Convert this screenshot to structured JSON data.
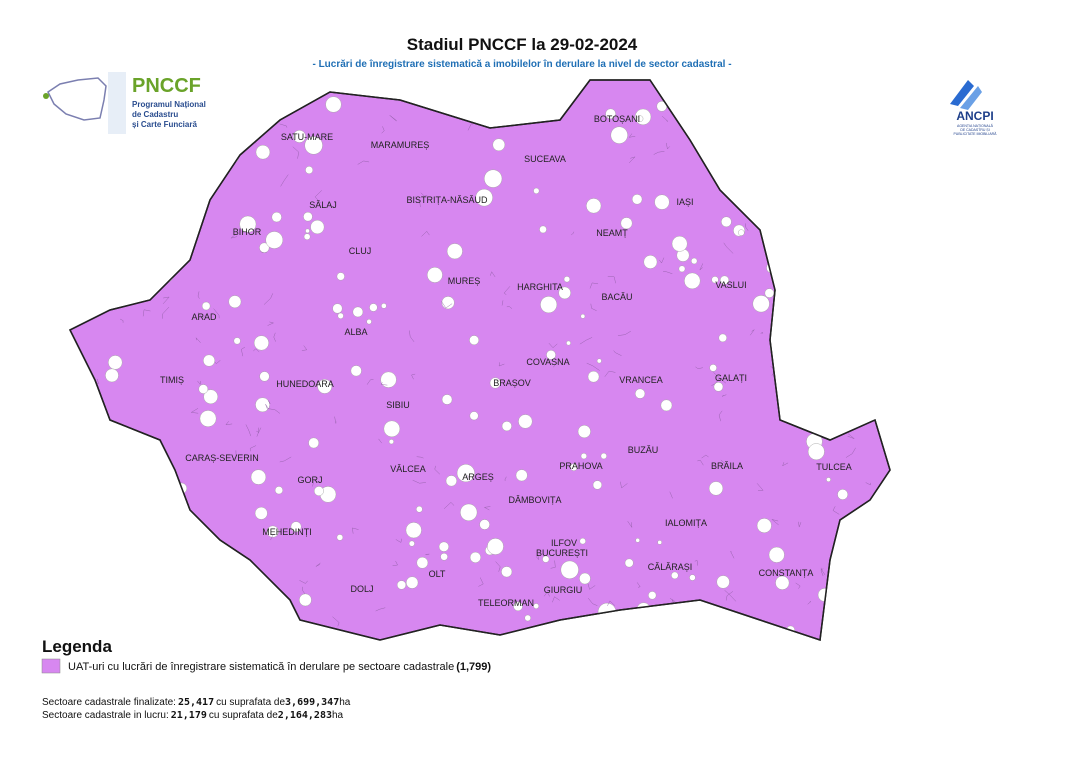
{
  "header": {
    "title": "Stadiul PNCCF la 29-02-2024",
    "subtitle": "- Lucrări de înregistrare sistematică a imobilelor în derulare la nivel de sector cadastral -"
  },
  "logo_left": {
    "name": "PNCCF",
    "lines": [
      "Programul Național",
      "de Cadastru",
      "și Carte Funciară"
    ]
  },
  "logo_right": {
    "name": "ANCPI",
    "lines": [
      "AGENȚIA NAȚIONALĂ",
      "DE CADASTRU ȘI",
      "PUBLICITATE IMOBILIARĂ"
    ]
  },
  "map": {
    "counties": [
      "SATU-MARE",
      "MARAMUREȘ",
      "BOTOȘANI",
      "SUCEAVA",
      "SĂLAJ",
      "BISTRIȚA-NĂSĂUD",
      "IAȘI",
      "BIHOR",
      "NEAMȚ",
      "CLUJ",
      "MUREȘ",
      "HARGHITA",
      "BACĂU",
      "VASLUI",
      "ARAD",
      "ALBA",
      "COVASNA",
      "TIMIȘ",
      "HUNEDOARA",
      "SIBIU",
      "BRAȘOV",
      "VRANCEA",
      "GALAȚI",
      "CARAȘ-SEVERIN",
      "VÂLCEA",
      "ARGEȘ",
      "PRAHOVA",
      "BUZĂU",
      "BRĂILA",
      "TULCEA",
      "GORJ",
      "DÂMBOVIȚA",
      "MEHEDINȚI",
      "IALOMIȚA",
      "ILFOV",
      "BUCUREȘTI",
      "CĂLĂRAȘI",
      "CONSTANȚA",
      "OLT",
      "DOLJ",
      "TELEORMAN",
      "GIURGIU"
    ]
  },
  "legend": {
    "title": "Legenda",
    "item_label": "UAT-uri cu lucrări de înregistrare sistematică în derulare pe sectoare cadastrale",
    "item_count": "(1,799)"
  },
  "stats": [
    {
      "label": "Sectoare cadastrale finalizate:",
      "count": "25,417",
      "middle": "cu suprafata de",
      "area": "3,699,347",
      "unit": "ha"
    },
    {
      "label": "Sectoare cadastrale in lucru:",
      "count": "21,179",
      "middle": "cu suprafata de",
      "area": "2,164,283",
      "unit": "ha"
    }
  ]
}
